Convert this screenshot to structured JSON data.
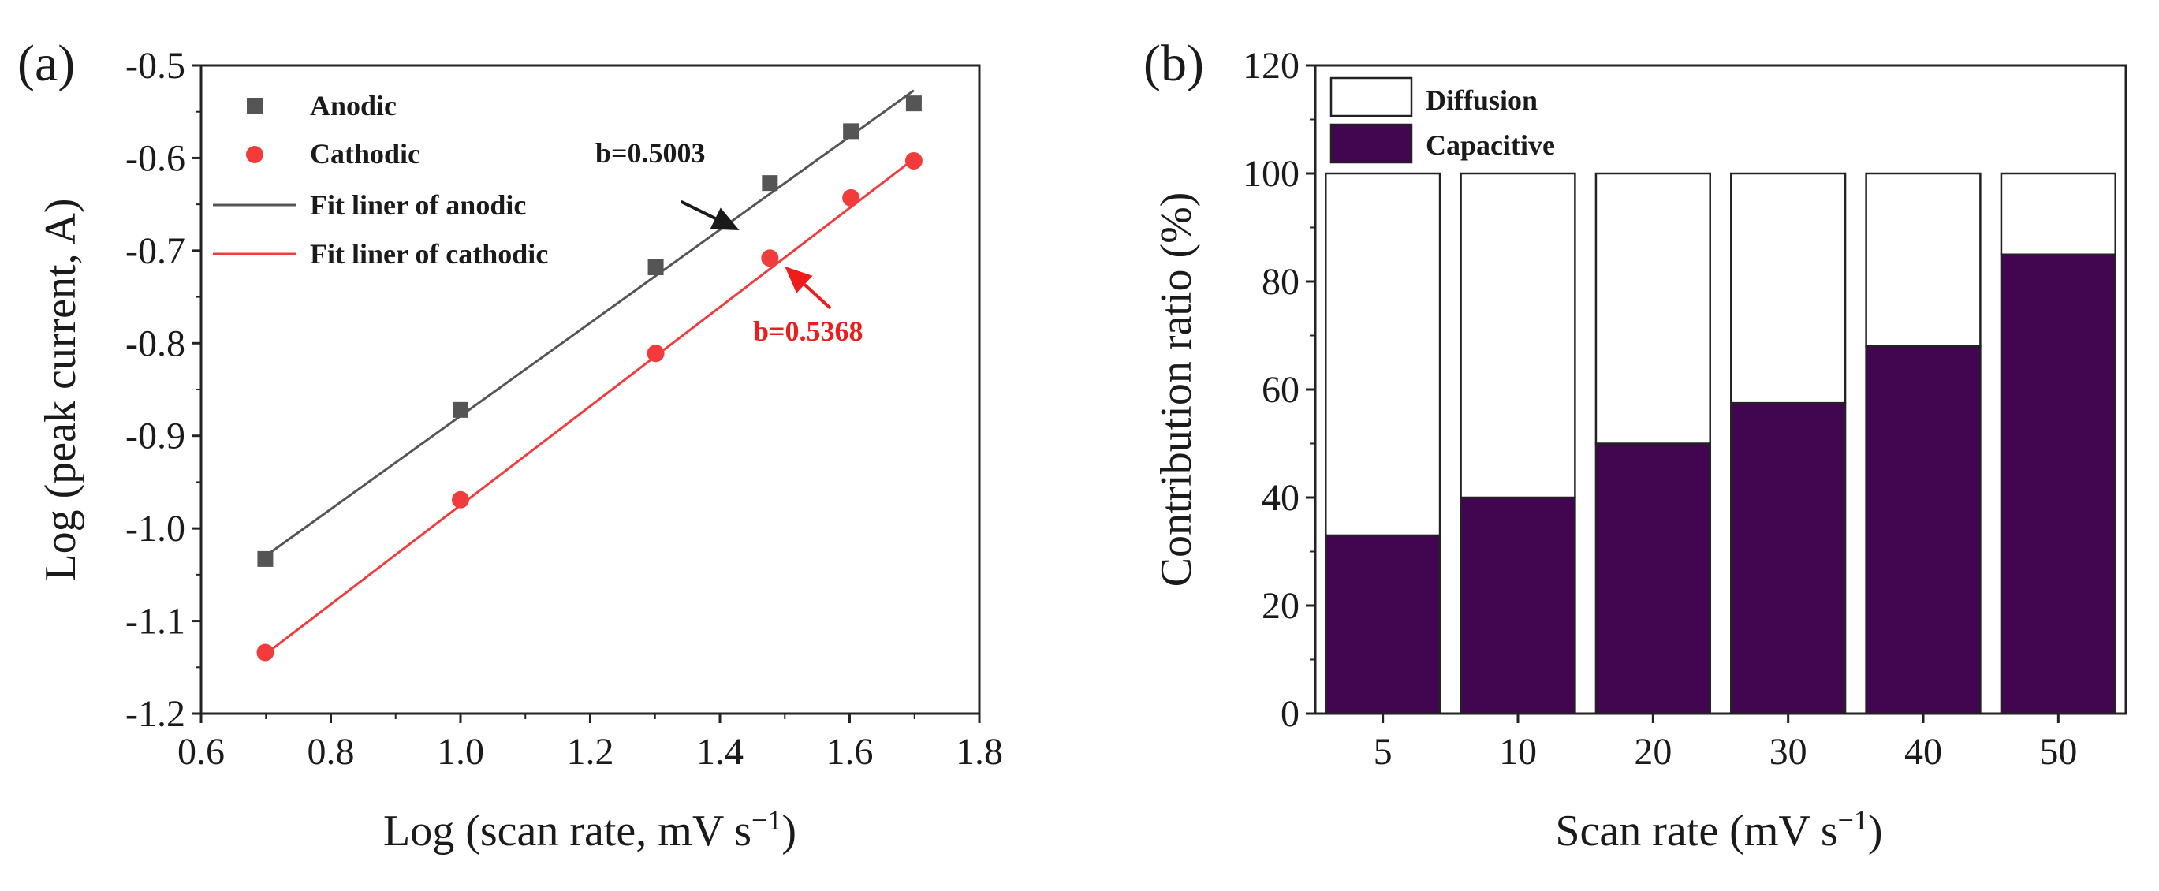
{
  "chart_data": [
    {
      "type": "scatter",
      "panel_label": "(a)",
      "xlabel": "Log (scan rate, mV s",
      "xlabel_sup": "−1",
      "xlabel_end": ")",
      "ylabel": "Log (peak current, A)",
      "xlim": [
        0.6,
        1.8
      ],
      "ylim": [
        -1.2,
        -0.5
      ],
      "xticks": [
        0.6,
        0.8,
        1.0,
        1.2,
        1.4,
        1.6,
        1.8
      ],
      "xtick_labels": [
        "0.6",
        "0.8",
        "1.0",
        "1.2",
        "1.4",
        "1.6",
        "1.8"
      ],
      "yticks": [
        -0.5,
        -0.6,
        -0.7,
        -0.8,
        -0.9,
        -1.0,
        -1.1,
        -1.2
      ],
      "ytick_labels": [
        "-0.5",
        "-0.6",
        "-0.7",
        "-0.8",
        "-0.9",
        "-1.0",
        "-1.1",
        "-1.2"
      ],
      "series": [
        {
          "name": "Anodic",
          "marker": "square",
          "color": "#555555",
          "x": [
            0.699,
            1.0,
            1.301,
            1.477,
            1.602,
            1.699
          ],
          "y": [
            -1.033,
            -0.872,
            -0.718,
            -0.627,
            -0.571,
            -0.541
          ]
        },
        {
          "name": "Cathodic",
          "marker": "circle",
          "color": "#f23b3b",
          "x": [
            0.699,
            1.0,
            1.301,
            1.477,
            1.602,
            1.699
          ],
          "y": [
            -1.134,
            -0.969,
            -0.811,
            -0.708,
            -0.643,
            -0.603
          ]
        }
      ],
      "fits": [
        {
          "name": "Fit liner of anodic",
          "color": "#555555",
          "x": [
            0.699,
            1.699
          ],
          "y": [
            -1.03,
            -0.527
          ]
        },
        {
          "name": "Fit liner of cathodic",
          "color": "#f23b3b",
          "x": [
            0.699,
            1.699
          ],
          "y": [
            -1.136,
            -0.601
          ]
        }
      ],
      "annotations": [
        {
          "text": "b=0.5003",
          "color": "#1a1a1a",
          "arrow_from": [
            1.34,
            -0.647
          ],
          "arrow_to": [
            1.43,
            -0.678
          ]
        },
        {
          "text": "b=0.5368",
          "color": "#ef1c1c",
          "arrow_from": [
            1.57,
            -0.762
          ],
          "arrow_to": [
            1.5,
            -0.717
          ]
        }
      ]
    },
    {
      "type": "bar",
      "stacked": true,
      "panel_label": "(b)",
      "xlabel": "Scan rate (mV s",
      "xlabel_sup": "−1",
      "xlabel_end": ")",
      "ylabel": "Contribution ratio (%)",
      "ylim": [
        0,
        120
      ],
      "yticks": [
        0,
        20,
        40,
        60,
        80,
        100,
        120
      ],
      "categories": [
        "5",
        "10",
        "20",
        "30",
        "40",
        "50"
      ],
      "series": [
        {
          "name": "Capacitive",
          "color": "#42054f",
          "values": [
            33,
            40,
            50,
            57.5,
            68,
            85
          ]
        },
        {
          "name": "Diffusion",
          "color": "#ffffff",
          "values": [
            67,
            60,
            50,
            42.5,
            32,
            15
          ]
        }
      ],
      "legend": [
        "Diffusion",
        "Capacitive"
      ]
    }
  ]
}
